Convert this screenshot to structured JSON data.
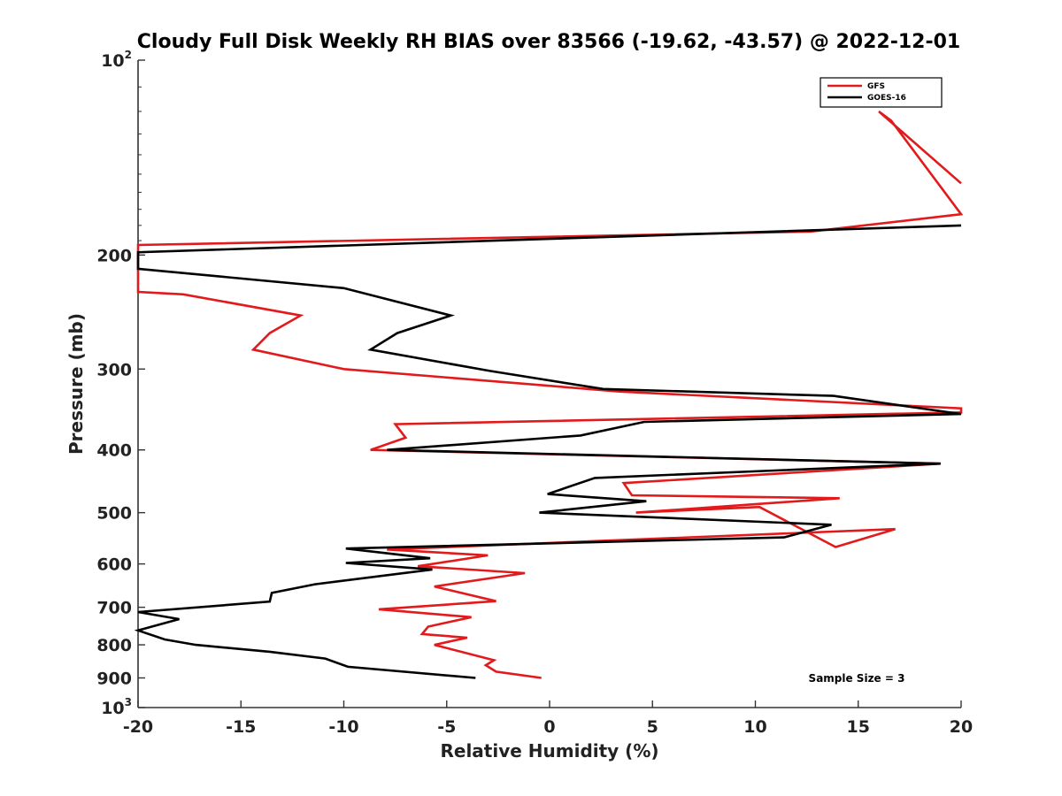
{
  "chart_data": {
    "type": "line",
    "title": "Cloudy Full Disk Weekly RH BIAS over 83566 (-19.62, -43.57) @ 2022-12-01",
    "xlabel": "Relative Humidity (%)",
    "ylabel": "Pressure (mb)",
    "xlim": [
      -20,
      20
    ],
    "ylim": [
      100,
      1000
    ],
    "y_scale": "log",
    "y_reversed": true,
    "x_ticks": [
      "-20",
      "-15",
      "-10",
      "-5",
      "0",
      "5",
      "10",
      "15",
      "20"
    ],
    "y_ticks": [
      {
        "value": 100,
        "base": "10",
        "exp": "2"
      },
      {
        "value": 200,
        "label": "200"
      },
      {
        "value": 300,
        "label": "300"
      },
      {
        "value": 400,
        "label": "400"
      },
      {
        "value": 500,
        "label": "500"
      },
      {
        "value": 600,
        "label": "600"
      },
      {
        "value": 700,
        "label": "700"
      },
      {
        "value": 800,
        "label": "800"
      },
      {
        "value": 900,
        "label": "900"
      },
      {
        "value": 1000,
        "base": "10",
        "exp": "3"
      }
    ],
    "grid": false,
    "legend_position": "top-right",
    "annotation": "Sample Size = 3",
    "series": [
      {
        "name": "GFS",
        "color": "#e31a1c",
        "x": [
          -0.4,
          -2.6,
          -3.1,
          -2.7,
          -5.6,
          -4.0,
          -6.2,
          -5.9,
          -3.8,
          -8.3,
          -2.6,
          -5.6,
          -1.2,
          -6.4,
          -3.0,
          -7.9,
          16.8,
          13.9,
          10.2,
          4.2,
          14.1,
          4.0,
          3.6,
          19.0,
          -8.7,
          -7.0,
          -7.5,
          20.0,
          20.0,
          3.4,
          -10.0,
          -14.4,
          -13.6,
          -12.1,
          -17.8,
          -20.0,
          -20.0,
          12.7,
          20.0,
          16.6,
          16.0
        ],
        "y": [
          900,
          880,
          860,
          845,
          800,
          780,
          770,
          750,
          725,
          705,
          685,
          650,
          620,
          605,
          582,
          570,
          530,
          565,
          490,
          500,
          475,
          470,
          450,
          420,
          400,
          383,
          365,
          350,
          345,
          325,
          300,
          280,
          264,
          248,
          230,
          228,
          193,
          184,
          173,
          124,
          120
        ],
        "end_x": 20.0,
        "end_y": 155
      },
      {
        "name": "GOES-16",
        "color": "#000000",
        "x": [
          -3.6,
          -9.8,
          -10.9,
          -13.6,
          -17.2,
          -18.7,
          -20.0,
          -18.0,
          -20.0,
          -13.6,
          -13.5,
          -11.4,
          -5.7,
          -9.9,
          -5.8,
          -9.9,
          11.4,
          13.7,
          -0.5,
          4.7,
          -0.1,
          2.2,
          19.0,
          -7.9,
          1.5,
          4.6,
          20.0,
          13.8,
          2.6,
          -2.9,
          -8.7,
          -7.4,
          -4.8,
          -10.0,
          -20.0,
          -20.0,
          20.0
        ],
        "y": [
          900,
          865,
          840,
          820,
          800,
          785,
          760,
          730,
          712,
          686,
          665,
          645,
          612,
          598,
          588,
          568,
          546,
          522,
          500,
          480,
          468,
          442,
          420,
          400,
          380,
          362,
          352,
          330,
          322,
          302,
          280,
          264,
          248,
          225,
          210,
          198,
          180
        ]
      }
    ]
  }
}
